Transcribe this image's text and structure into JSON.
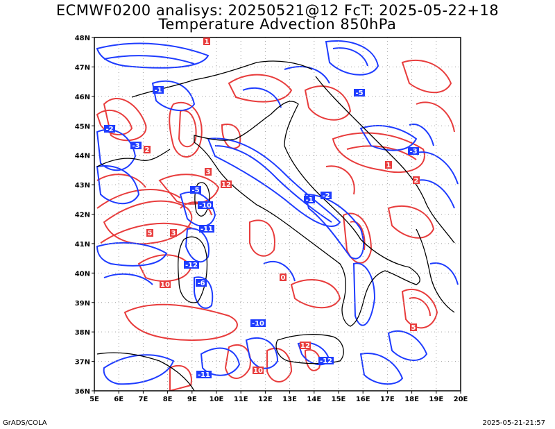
{
  "title_line1": "ECMWF0200 analisys: 20250521@12 FcT: 2025-05-22+18",
  "title_line2": "Temperature Advection 850hPa",
  "footer_left": "GrADS/COLA",
  "footer_right": "2025-05-21-21:57",
  "colors": {
    "warm_advection": "#e83c3c",
    "cold_advection": "#1e3cff",
    "coastline": "#000000",
    "grid": "#a0a0a0"
  },
  "lat_labels": [
    "48N",
    "47N",
    "46N",
    "45N",
    "44N",
    "43N",
    "42N",
    "41N",
    "40N",
    "39N",
    "38N",
    "37N",
    "36N"
  ],
  "lon_labels": [
    "5E",
    "6E",
    "7E",
    "8E",
    "9E",
    "10E",
    "11E",
    "12E",
    "13E",
    "14E",
    "15E",
    "16E",
    "17E",
    "18E",
    "19E",
    "20E"
  ],
  "contour_labels_warm": [
    "1",
    "2",
    "3",
    "5",
    "10",
    "12",
    "0"
  ],
  "contour_labels_cold": [
    "-1",
    "-2",
    "-3",
    "-5",
    "-10",
    "-11",
    "-12",
    "-6"
  ]
}
